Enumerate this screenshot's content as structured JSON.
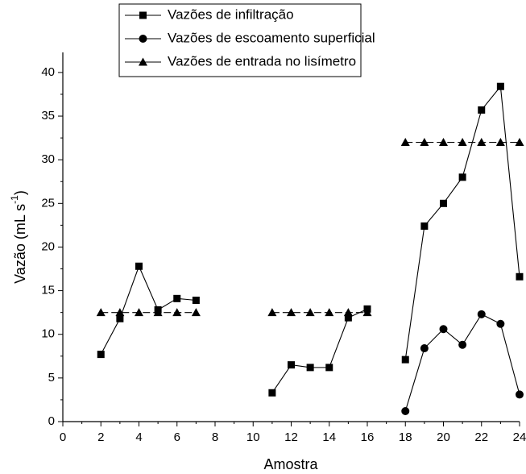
{
  "chart_data": {
    "type": "line",
    "x_label": "Amostra",
    "y_label": "Vazão (mL s",
    "y_label_sup": "-1",
    "y_label_end": ")",
    "x": [
      2,
      3,
      4,
      5,
      6,
      7,
      8,
      9,
      10,
      11,
      12,
      13,
      14,
      15,
      16,
      17,
      18,
      19,
      20,
      21,
      22,
      23,
      24
    ],
    "series": [
      {
        "name": "Vazões de infiltração",
        "color": "#000000",
        "marker": "square",
        "dash": false,
        "values": [
          7.7,
          11.8,
          17.8,
          12.8,
          14.1,
          13.9,
          null,
          null,
          null,
          3.3,
          6.5,
          6.2,
          6.2,
          11.9,
          12.9,
          null,
          7.1,
          22.4,
          25,
          28,
          35.7,
          38.4,
          16.6
        ]
      },
      {
        "name": "Vazões de escoamento superficial",
        "color": "#000000",
        "marker": "circle",
        "dash": false,
        "values": [
          null,
          null,
          null,
          null,
          null,
          null,
          null,
          null,
          null,
          null,
          null,
          null,
          null,
          null,
          null,
          null,
          1.2,
          8.4,
          10.6,
          8.8,
          12.3,
          11.2,
          3.1
        ]
      },
      {
        "name": "Vazões de entrada no lisímetro",
        "color": "#000000",
        "marker": "triangle",
        "dash": true,
        "values": [
          12.5,
          12.5,
          12.5,
          12.5,
          12.5,
          12.5,
          null,
          null,
          null,
          12.5,
          12.5,
          12.5,
          12.5,
          12.5,
          12.5,
          null,
          32,
          32,
          32,
          32,
          32,
          32,
          32
        ]
      }
    ],
    "xlim": [
      0,
      24
    ],
    "xticks": [
      0,
      2,
      4,
      6,
      8,
      10,
      12,
      14,
      16,
      18,
      20,
      22,
      24
    ],
    "xminorticks": [
      1,
      3,
      5,
      7,
      9,
      11,
      13,
      15,
      17,
      19,
      21,
      23
    ],
    "ylim": [
      0,
      42.3
    ],
    "yticks": [
      0,
      5,
      10,
      15,
      20,
      25,
      30,
      35,
      40
    ],
    "yminorticks": [
      2.5,
      7.5,
      12.5,
      17.5,
      22.5,
      27.5,
      32.5,
      37.5
    ],
    "grid": false,
    "legend": "top"
  }
}
